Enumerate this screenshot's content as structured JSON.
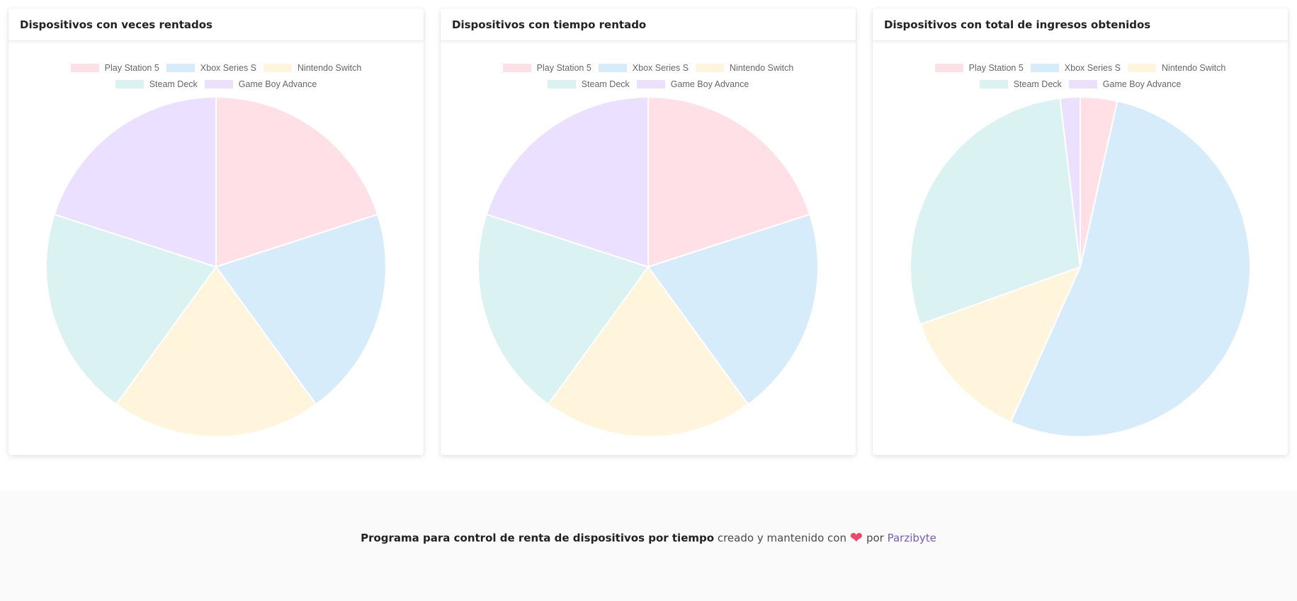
{
  "colors": {
    "pink": "#ffe0e6",
    "blue": "#d7ecfb",
    "yellow": "#fff5dd",
    "teal": "#dbf2f2",
    "purple": "#ebe0ff"
  },
  "chart_data": [
    {
      "type": "pie",
      "title": "Dispositivos con veces rentados",
      "categories": [
        "Play Station 5",
        "Xbox Series S",
        "Nintendo Switch",
        "Steam Deck",
        "Game Boy Advance"
      ],
      "values": [
        20,
        20,
        20,
        20,
        20
      ],
      "legend": "top"
    },
    {
      "type": "pie",
      "title": "Dispositivos con tiempo rentado",
      "categories": [
        "Play Station 5",
        "Xbox Series S",
        "Nintendo Switch",
        "Steam Deck",
        "Game Boy Advance"
      ],
      "values": [
        20,
        20,
        20,
        20,
        20
      ],
      "legend": "top"
    },
    {
      "type": "pie",
      "title": "Dispositivos con total de ingresos obtenidos",
      "categories": [
        "Play Station 5",
        "Xbox Series S",
        "Nintendo Switch",
        "Steam Deck",
        "Game Boy Advance"
      ],
      "values": [
        3.5,
        53.2,
        12.8,
        28.6,
        1.9
      ],
      "legend": "top"
    }
  ],
  "footer": {
    "bold": "Programa para control de renta de dispositivos por tiempo",
    "middle": "creado y mantenido con",
    "heart_icon": "heart",
    "por": "por",
    "link": "Parzibyte"
  }
}
